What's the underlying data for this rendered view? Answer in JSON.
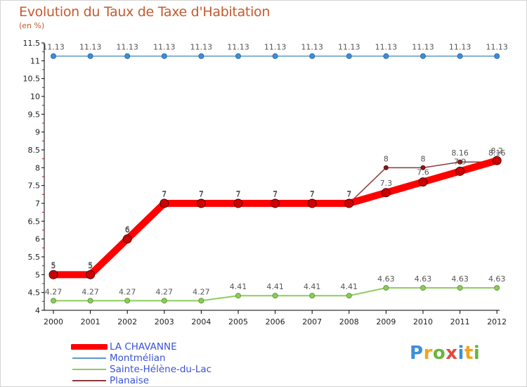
{
  "header": {
    "title": "Evolution du Taux de Taxe d'Habitation",
    "subtitle": "(en %)"
  },
  "chart_data": {
    "type": "line",
    "title": "Evolution du Taux de Taxe d'Habitation",
    "ylabel": "(en %)",
    "xlabel": "",
    "x": [
      "2000",
      "2001",
      "2002",
      "2003",
      "2004",
      "2005",
      "2006",
      "2007",
      "2008",
      "2009",
      "2010",
      "2011",
      "2012"
    ],
    "ylim": [
      4,
      11.5
    ],
    "yticks": [
      "4",
      "4.5",
      "5",
      "5.5",
      "6",
      "6.5",
      "7",
      "7.5",
      "8",
      "8.5",
      "9",
      "9.5",
      "10",
      "10.5",
      "11",
      "11.5"
    ],
    "grid": false,
    "legend_position": "bottom-left",
    "series": [
      {
        "name": "LA CHAVANNE",
        "color": "#ff0000",
        "values": [
          5,
          5,
          6,
          7,
          7,
          7,
          7,
          7,
          7,
          7.3,
          7.6,
          7.9,
          8.2
        ],
        "labels": [
          "5",
          "5",
          "6",
          "7",
          "7",
          "7",
          "7",
          "7",
          "7",
          "7.3",
          "7.6",
          "7.9",
          "8.2"
        ]
      },
      {
        "name": "Montmélian",
        "color": "#5b9bc8",
        "values": [
          11.13,
          11.13,
          11.13,
          11.13,
          11.13,
          11.13,
          11.13,
          11.13,
          11.13,
          11.13,
          11.13,
          11.13,
          11.13
        ],
        "labels": [
          "11.13",
          "11.13",
          "11.13",
          "11.13",
          "11.13",
          "11.13",
          "11.13",
          "11.13",
          "11.13",
          "11.13",
          "11.13",
          "11.13",
          "11.13"
        ]
      },
      {
        "name": "Sainte-Hélène-du-Lac",
        "color": "#8dcc5a",
        "values": [
          4.27,
          4.27,
          4.27,
          4.27,
          4.27,
          4.41,
          4.41,
          4.41,
          4.41,
          4.63,
          4.63,
          4.63,
          4.63
        ],
        "labels": [
          "4.27",
          "4.27",
          "4.27",
          "4.27",
          "4.27",
          "4.41",
          "4.41",
          "4.41",
          "4.41",
          "4.63",
          "4.63",
          "4.63",
          "4.63"
        ]
      },
      {
        "name": "Planaise",
        "color": "#8b3a3a",
        "values": [
          5,
          5,
          6,
          7,
          7,
          7,
          7,
          7,
          7,
          8,
          8,
          8.16,
          8.16
        ],
        "labels": [
          "5",
          "5",
          "6",
          "7",
          "7",
          "7",
          "7",
          "7",
          "7",
          "8",
          "8",
          "8.16",
          "8.16"
        ]
      }
    ]
  },
  "legend": {
    "items": [
      {
        "label": "LA CHAVANNE",
        "color": "#ff0000"
      },
      {
        "label": "Montmélian",
        "color": "#5b9bc8"
      },
      {
        "label": "Sainte-Hélène-du-Lac",
        "color": "#8dcc5a"
      },
      {
        "label": "Planaise",
        "color": "#8b3a3a"
      }
    ]
  },
  "logo": {
    "text": "Proxiti",
    "letters": [
      {
        "char": "P",
        "color": "#3d8fd6"
      },
      {
        "char": "r",
        "color": "#f2a51a"
      },
      {
        "char": "o",
        "color": "#6cb33f"
      },
      {
        "char": "x",
        "color": "#e04b3a"
      },
      {
        "char": "i",
        "color": "#3d8fd6"
      },
      {
        "char": "t",
        "color": "#f2a51a"
      },
      {
        "char": "i",
        "color": "#6cb33f"
      }
    ]
  }
}
